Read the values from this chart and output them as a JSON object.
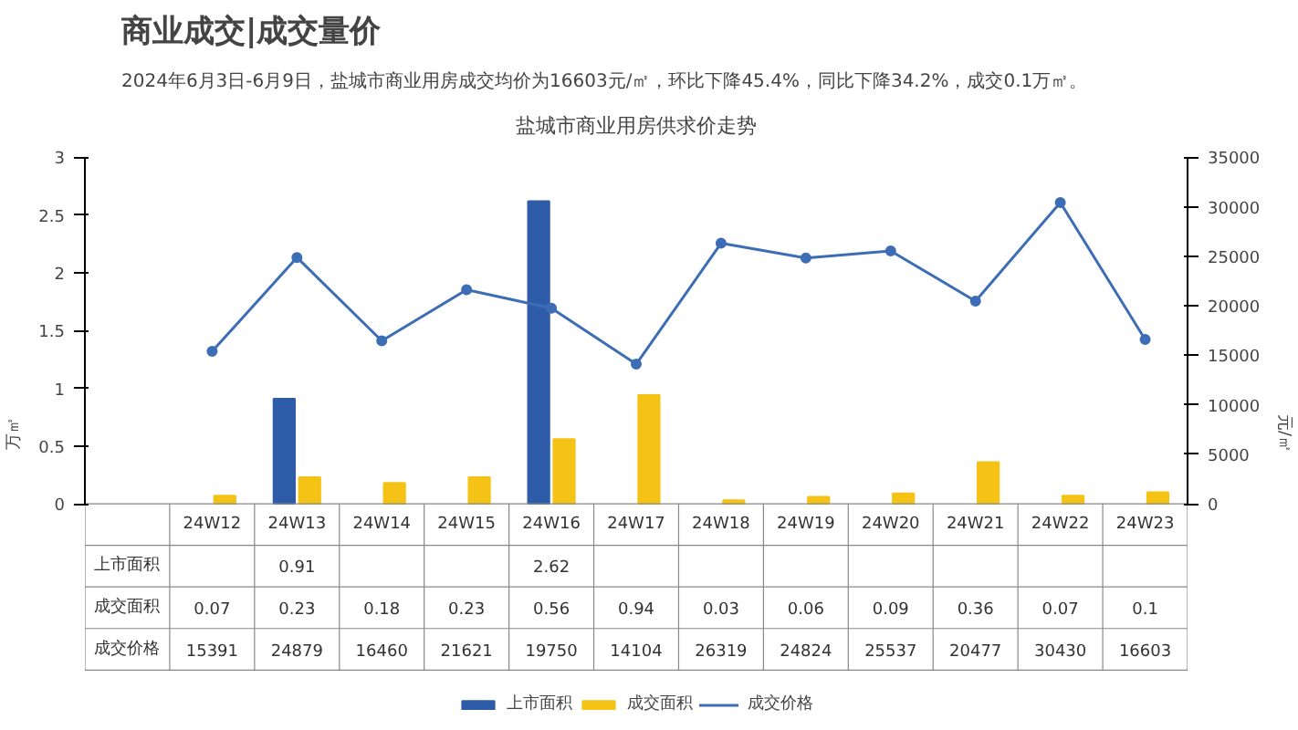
{
  "chart_data": {
    "type": "bar",
    "title": "盐城市商业用房供求价走势",
    "subtitle": "2024年6月3日-6月9日，盐城市商业用房成交均价为16603元/㎡，环比下降45.4%，同比下降34.2%，成交0.1万㎡。",
    "annotations": [
      "商业成交|成交量价"
    ],
    "ylabel": "万㎡",
    "y2label": "元/㎡",
    "categories": [
      "24W12",
      "24W13",
      "24W14",
      "24W15",
      "24W16",
      "24W17",
      "24W18",
      "24W19",
      "24W20",
      "24W21",
      "24W22",
      "24W23"
    ],
    "series": [
      {
        "name": "上市面积",
        "color": "#2e5ca8",
        "values": [
          null,
          0.91,
          null,
          null,
          2.62,
          null,
          null,
          null,
          null,
          null,
          null,
          null
        ]
      },
      {
        "name": "成交面积",
        "color": "#f5c216",
        "values": [
          0.07,
          0.23,
          0.18,
          0.23,
          0.56,
          0.94,
          0.03,
          0.06,
          0.09,
          0.36,
          0.07,
          0.1
        ]
      },
      {
        "name": "成交价格",
        "type": "line",
        "axis": "y2",
        "color": "#3d6db5",
        "values": [
          15391,
          24879,
          16460,
          21621,
          19750,
          14104,
          26319,
          24824,
          25537,
          20477,
          30430,
          16603
        ]
      }
    ],
    "ylim": [
      0,
      3
    ],
    "yticks": [
      0,
      0.5,
      1,
      1.5,
      2,
      2.5,
      3
    ],
    "y2lim": [
      0,
      35000
    ],
    "y2ticks": [
      0,
      5000,
      10000,
      15000,
      20000,
      25000,
      30000,
      35000
    ],
    "data_labels": true,
    "grid": false,
    "legend": "bottom",
    "marker": "circle"
  }
}
